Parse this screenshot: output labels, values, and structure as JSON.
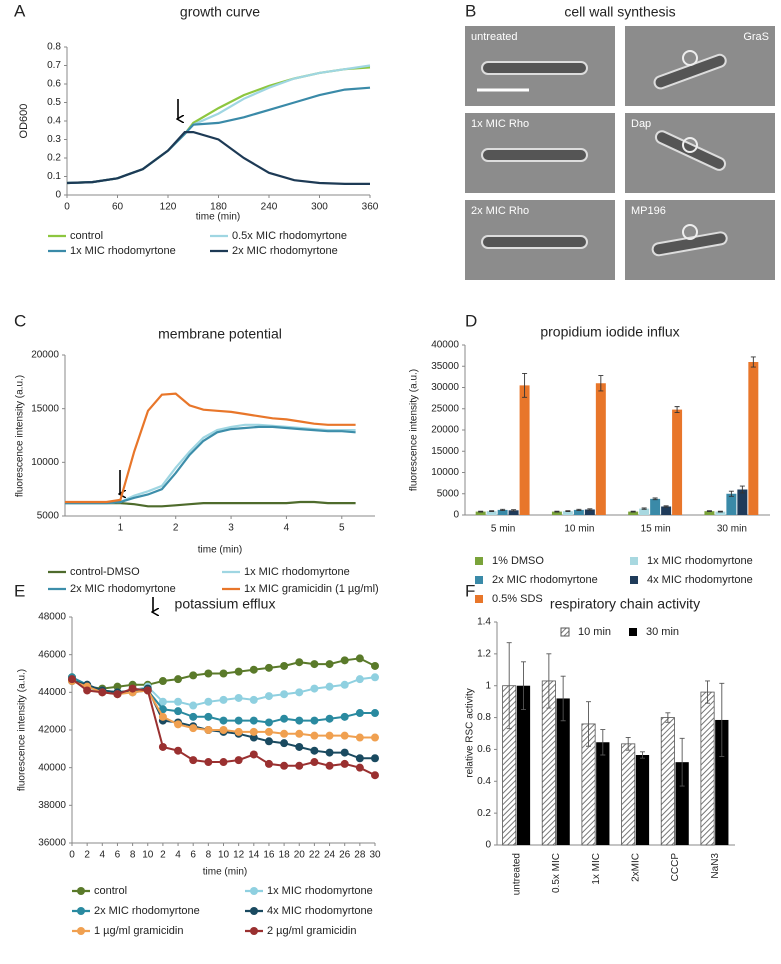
{
  "panel_labels": [
    "A",
    "B",
    "C",
    "D",
    "E",
    "F"
  ],
  "micrographs": {
    "title": "cell wall synthesis",
    "labels": [
      "untreated",
      "GraS",
      "1x MIC Rho",
      "Dap",
      "2x MIC Rho",
      "MP196"
    ]
  },
  "chart_data": [
    {
      "type": "line",
      "title": "growth curve",
      "xlabel": "time (min)",
      "ylabel": "OD600",
      "x": [
        0,
        30,
        60,
        90,
        120,
        140,
        150,
        180,
        210,
        240,
        270,
        300,
        330,
        360
      ],
      "xlim": [
        0,
        360
      ],
      "xticks": [
        0,
        60,
        120,
        180,
        240,
        300,
        360
      ],
      "ylim": [
        0,
        0.8
      ],
      "yticks": [
        0,
        0.1,
        0.2,
        0.3,
        0.4,
        0.5,
        0.6,
        0.7,
        0.8
      ],
      "series": [
        {
          "name": "control",
          "color": "#8dc63f",
          "values": [
            0.065,
            0.07,
            0.09,
            0.14,
            0.24,
            0.33,
            0.39,
            0.47,
            0.54,
            0.59,
            0.63,
            0.66,
            0.68,
            0.69
          ]
        },
        {
          "name": "0.5x MIC rhodomyrtone",
          "color": "#9fd6e2",
          "values": [
            0.065,
            0.07,
            0.09,
            0.14,
            0.24,
            0.33,
            0.38,
            0.44,
            0.52,
            0.58,
            0.63,
            0.66,
            0.68,
            0.7
          ]
        },
        {
          "name": "1x MIC rhodomyrtone",
          "color": "#3a8aa8",
          "values": [
            0.065,
            0.07,
            0.09,
            0.14,
            0.24,
            0.33,
            0.38,
            0.39,
            0.42,
            0.46,
            0.5,
            0.54,
            0.57,
            0.58
          ]
        },
        {
          "name": "2x MIC rhodomyrtone",
          "color": "#1d3a55",
          "values": [
            0.065,
            0.07,
            0.09,
            0.14,
            0.24,
            0.34,
            0.34,
            0.3,
            0.2,
            0.12,
            0.08,
            0.065,
            0.06,
            0.06
          ]
        }
      ]
    },
    {
      "type": "line",
      "title": "membrane potential",
      "xlabel": "time (min)",
      "ylabel": "fluorescence intensity (a.u.)",
      "x": [
        0,
        0.25,
        0.5,
        0.75,
        1,
        1.25,
        1.5,
        1.75,
        2,
        2.25,
        2.5,
        2.75,
        3,
        3.25,
        3.5,
        3.75,
        4,
        4.25,
        4.5,
        4.75,
        5,
        5.25
      ],
      "xlim": [
        0,
        5.6
      ],
      "xticks": [
        1,
        2,
        3,
        4,
        5
      ],
      "ylim": [
        5000,
        20000
      ],
      "yticks": [
        5000,
        10000,
        15000,
        20000
      ],
      "series": [
        {
          "name": "control-DMSO",
          "color": "#4e6b2c",
          "values": [
            6200,
            6200,
            6200,
            6200,
            6200,
            6100,
            5900,
            5900,
            6000,
            6100,
            6200,
            6200,
            6200,
            6200,
            6200,
            6200,
            6200,
            6300,
            6300,
            6200,
            6200,
            6200
          ]
        },
        {
          "name": "1x MIC rhodomyrtone",
          "color": "#9fd6e2",
          "values": [
            6200,
            6200,
            6200,
            6200,
            6300,
            6900,
            7300,
            7800,
            9500,
            11000,
            12300,
            13000,
            13300,
            13500,
            13500,
            13400,
            13300,
            13200,
            13100,
            13000,
            13000,
            13000
          ]
        },
        {
          "name": "2x MIC rhodomyrtone",
          "color": "#3d8eaa",
          "values": [
            6200,
            6200,
            6200,
            6200,
            6300,
            6700,
            7000,
            7500,
            9000,
            10700,
            12000,
            12800,
            13100,
            13200,
            13300,
            13300,
            13200,
            13100,
            13000,
            12900,
            12900,
            12800
          ]
        },
        {
          "name": "1x MIC gramicidin (1 µg/ml)",
          "color": "#e8762a",
          "values": [
            6300,
            6300,
            6300,
            6300,
            6500,
            11000,
            14800,
            16300,
            16400,
            15300,
            14900,
            14800,
            14700,
            14500,
            14300,
            14100,
            14000,
            13800,
            13600,
            13500,
            13500,
            13500
          ]
        }
      ]
    },
    {
      "type": "bar",
      "title": "propidium iodide influx",
      "ylabel": "fluorescence intensity (a.u.)",
      "categories": [
        "5 min",
        "10 min",
        "15 min",
        "30 min"
      ],
      "ylim": [
        0,
        40000
      ],
      "yticks": [
        0,
        5000,
        10000,
        15000,
        20000,
        25000,
        30000,
        35000,
        40000
      ],
      "series": [
        {
          "name": "1% DMSO",
          "color": "#7aa33a",
          "values": [
            800,
            800,
            800,
            900
          ],
          "errors": [
            100,
            100,
            100,
            100
          ]
        },
        {
          "name": "1x MIC rhodomyrtone",
          "color": "#a8d8e0",
          "values": [
            900,
            900,
            1500,
            800
          ],
          "errors": [
            100,
            100,
            150,
            100
          ]
        },
        {
          "name": "2x MIC rhodomyrtone",
          "color": "#3a8aa8",
          "values": [
            1200,
            1200,
            3800,
            5000
          ],
          "errors": [
            150,
            150,
            200,
            600
          ]
        },
        {
          "name": "4x MIC rhodomyrtone",
          "color": "#1f3b5a",
          "values": [
            1100,
            1300,
            2000,
            6000
          ],
          "errors": [
            150,
            150,
            150,
            800
          ]
        },
        {
          "name": "0.5% SDS",
          "color": "#e8762a",
          "values": [
            30500,
            31000,
            24800,
            36000
          ],
          "errors": [
            2800,
            1800,
            700,
            1200
          ]
        }
      ]
    },
    {
      "type": "line",
      "markers": true,
      "title": "potassium efflux",
      "xlabel": "time (min)",
      "ylabel": "fluorescence intensity (a.u.)",
      "x": [
        0,
        2,
        4,
        6,
        8,
        10,
        12,
        14,
        16,
        18,
        20,
        22,
        24,
        26,
        28,
        30,
        32,
        34,
        36,
        38,
        40
      ],
      "xlim": [
        0,
        40
      ],
      "xticks": [
        0,
        2,
        4,
        6,
        8,
        10,
        {
          "value": 12,
          "label": "2"
        },
        {
          "value": 14,
          "label": "4"
        },
        {
          "value": 16,
          "label": "6"
        },
        {
          "value": 18,
          "label": "8"
        },
        {
          "value": 20,
          "label": "10"
        },
        {
          "value": 22,
          "label": "12"
        },
        {
          "value": 24,
          "label": "14"
        },
        {
          "value": 26,
          "label": "16"
        },
        {
          "value": 28,
          "label": "18"
        },
        {
          "value": 30,
          "label": "20"
        },
        {
          "value": 32,
          "label": "22"
        },
        {
          "value": 34,
          "label": "24"
        },
        {
          "value": 36,
          "label": "26"
        },
        {
          "value": 38,
          "label": "28"
        },
        {
          "value": 40,
          "label": "30"
        }
      ],
      "ylim": [
        36000,
        48000
      ],
      "yticks": [
        36000,
        38000,
        40000,
        42000,
        44000,
        46000,
        48000
      ],
      "series": [
        {
          "name": "control",
          "color": "#5a7a2a",
          "values": [
            44800,
            44300,
            44200,
            44300,
            44400,
            44400,
            44600,
            44700,
            44900,
            45000,
            45000,
            45100,
            45200,
            45300,
            45400,
            45600,
            45500,
            45500,
            45700,
            45800,
            45400
          ]
        },
        {
          "name": "1x MIC rhodomyrtone",
          "color": "#8fd0e0",
          "values": [
            44700,
            44200,
            44000,
            44000,
            44100,
            44300,
            43500,
            43500,
            43300,
            43500,
            43600,
            43700,
            43600,
            43800,
            43900,
            44000,
            44200,
            44300,
            44400,
            44700,
            44800
          ]
        },
        {
          "name": "2x MIC rhodomyrtone",
          "color": "#2a8aa0",
          "values": [
            44800,
            44400,
            44100,
            44000,
            44000,
            44100,
            43100,
            43000,
            42700,
            42700,
            42500,
            42500,
            42500,
            42400,
            42600,
            42500,
            42500,
            42600,
            42700,
            42900,
            42900
          ]
        },
        {
          "name": "4x MIC rhodomyrtone",
          "color": "#1a4a60",
          "values": [
            44600,
            44400,
            44100,
            44000,
            44100,
            44200,
            42500,
            42400,
            42200,
            42000,
            41900,
            41800,
            41600,
            41400,
            41300,
            41100,
            40900,
            40800,
            40800,
            40500,
            40500
          ]
        },
        {
          "name": "1 µg/ml gramicidin",
          "color": "#f0a050",
          "values": [
            44600,
            44300,
            44000,
            43900,
            44000,
            44100,
            42700,
            42300,
            42100,
            42000,
            42000,
            41900,
            41900,
            41900,
            41800,
            41800,
            41700,
            41700,
            41700,
            41600,
            41600
          ]
        },
        {
          "name": "2 µg/ml gramicidin",
          "color": "#9a3030",
          "values": [
            44700,
            44100,
            44000,
            43900,
            44200,
            44100,
            41100,
            40900,
            40400,
            40300,
            40300,
            40400,
            40700,
            40200,
            40100,
            40100,
            40300,
            40100,
            40200,
            40000,
            39600
          ]
        }
      ]
    },
    {
      "type": "bar",
      "title": "respiratory chain activity",
      "ylabel": "relative RSC activity",
      "categories": [
        "untreated",
        "0.5x MIC",
        "1x MIC",
        "2xMIC",
        "CCCP",
        "NaN3"
      ],
      "ylim": [
        0,
        1.4
      ],
      "yticks": [
        0,
        0.2,
        0.4,
        0.6,
        0.8,
        1,
        1.2,
        1.4
      ],
      "series": [
        {
          "name": "10 min",
          "color": "#888888",
          "hatch": true,
          "values": [
            1,
            1.03,
            0.76,
            0.635,
            0.8,
            0.96
          ],
          "errors": [
            0.27,
            0.17,
            0.14,
            0.04,
            0.03,
            0.07
          ]
        },
        {
          "name": "30 min",
          "color": "#000000",
          "values": [
            1,
            0.92,
            0.645,
            0.565,
            0.52,
            0.785
          ],
          "errors": [
            0.15,
            0.14,
            0.08,
            0.02,
            0.15,
            0.23
          ]
        }
      ]
    }
  ]
}
